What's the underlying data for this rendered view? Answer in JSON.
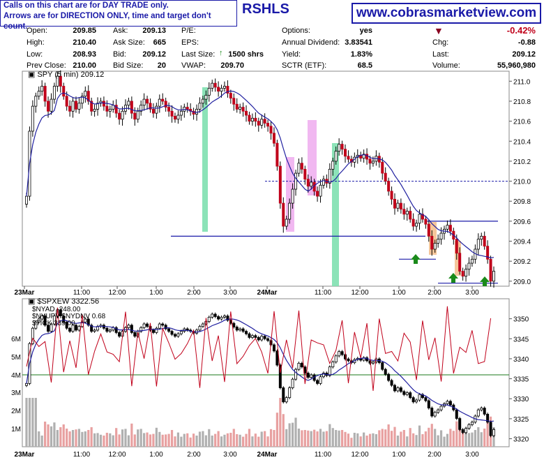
{
  "notice": {
    "line1": "Calls on this chart are for DAY TRADE only.",
    "line2": "Arrows are for DIRECTION ONLY, time and target don't count."
  },
  "symbol_title": "RSHLS",
  "brand": "www.cobrasmarketview.com",
  "quote": {
    "open_label": "Open:",
    "open": "209.85",
    "high_label": "High:",
    "high": "210.40",
    "low_label": "Low:",
    "low": "208.93",
    "prev_label": "Prev Close:",
    "prev": "210.00",
    "ask_label": "Ask:",
    "ask": "209.13",
    "asksize_label": "Ask Size:",
    "asksize": "665",
    "bid_label": "Bid:",
    "bid": "209.12",
    "bidsize_label": "Bid Size:",
    "bidsize": "20",
    "pe_label": "P/E:",
    "pe": "",
    "eps_label": "EPS:",
    "eps": "",
    "lastsize_label": "Last Size:",
    "lastsize": "1500 shrs",
    "vwap_label": "VWAP:",
    "vwap": "209.70",
    "options_label": "Options:",
    "options": "yes",
    "div_label": "Annual Dividend:",
    "div": "3.83541",
    "yield_label": "Yield:",
    "yield": "1.83%",
    "sctr_label": "SCTR (ETF):",
    "sctr": "68.5",
    "chg_pct": "-0.42%",
    "chg_label": "Chg:",
    "chg": "-0.88",
    "last_label": "Last:",
    "last": "209.12",
    "vol_label": "Volume:",
    "vol": "55,960,980"
  },
  "colors": {
    "brand_blue": "#1a1aa8",
    "candle_up": "#000000",
    "candle_down": "#c0001a",
    "ma_line": "#2020a0",
    "green_bar": "#7fe0b0",
    "pink_bar": "#f0b0f0",
    "orange_bar": "#f4c090",
    "arrow": "#1a8a1a",
    "breadth_line": "#c0001a",
    "volume_up": "#b0b0b0",
    "volume_down": "#e8a0a0"
  },
  "chart_data": [
    {
      "type": "candlestick",
      "title": "SPY (5 min) 209.12",
      "ylim": [
        208.95,
        211.1
      ],
      "y_ticks": [
        209.0,
        209.2,
        209.4,
        209.6,
        209.8,
        210.0,
        210.2,
        210.4,
        210.6,
        210.8,
        211.0
      ],
      "x_labels": [
        "23Mar",
        "11:00",
        "12:00",
        "1:00",
        "2:00",
        "3:00",
        "24Mar",
        "11:00",
        "12:00",
        "1:00",
        "2:00",
        "3:00"
      ],
      "levels": [
        209.45,
        210.0,
        209.6,
        209.22,
        208.98
      ],
      "close": [
        209.85,
        210.5,
        210.75,
        210.85,
        210.9,
        210.95,
        210.8,
        210.7,
        210.82,
        210.95,
        211.05,
        210.95,
        210.85,
        210.75,
        210.7,
        210.8,
        210.72,
        210.78,
        210.85,
        210.9,
        210.8,
        210.7,
        210.72,
        210.78,
        210.8,
        210.75,
        210.7,
        210.72,
        210.76,
        210.68,
        210.62,
        210.7,
        210.76,
        210.8,
        210.68,
        210.62,
        210.7,
        210.76,
        210.82,
        210.78,
        210.72,
        210.68,
        210.75,
        210.82,
        210.8,
        210.74,
        210.7,
        210.65,
        210.62,
        210.66,
        210.7,
        210.74,
        210.72,
        210.7,
        210.67,
        210.72,
        210.78,
        210.82,
        210.86,
        210.93,
        210.98,
        210.94,
        210.9,
        210.93,
        210.95,
        210.88,
        210.83,
        210.77,
        210.72,
        210.74,
        210.7,
        210.66,
        210.6,
        210.63,
        210.6,
        210.56,
        210.62,
        210.58,
        210.55,
        210.48,
        210.38,
        210.15,
        209.78,
        209.55,
        209.62,
        209.78,
        209.92,
        210.08,
        210.18,
        210.12,
        210.02,
        209.95,
        209.99,
        209.9,
        209.85,
        209.96,
        210.02,
        209.98,
        210.12,
        210.2,
        210.3,
        210.37,
        210.32,
        210.25,
        210.22,
        210.19,
        210.24,
        210.26,
        210.23,
        210.27,
        210.22,
        210.18,
        210.2,
        210.25,
        210.19,
        210.08,
        210.0,
        209.9,
        209.82,
        209.73,
        209.78,
        209.72,
        209.67,
        209.7,
        209.62,
        209.55,
        209.58,
        209.67,
        209.62,
        209.57,
        209.45,
        209.32,
        209.38,
        209.42,
        209.48,
        209.52,
        209.56,
        209.5,
        209.42,
        209.28,
        209.1,
        209.05,
        209.12,
        209.18,
        209.22,
        209.32,
        209.42,
        209.45,
        209.35,
        209.22,
        209.0,
        209.1
      ]
    },
    {
      "type": "line",
      "title": "$SPXEW 3322.56",
      "series": [
        {
          "name": "$SPXEW 3322.56",
          "y_range": [
            3318,
            3355
          ]
        },
        {
          "name": "$NYAD -248.00"
        },
        {
          "name": "$NYUPV:$NYDNV 0.68"
        },
        {
          "name": "$TICK 339.00"
        }
      ],
      "y_ticks_right": [
        3320,
        3325,
        3330,
        3335,
        3340,
        3345,
        3350
      ],
      "y_ticks_left": [
        "1M",
        "2M",
        "3M",
        "4M",
        "5M",
        "6M"
      ],
      "x_labels": [
        "23Mar",
        "11:00",
        "12:00",
        "1:00",
        "2:00",
        "3:00",
        "24Mar",
        "11:00",
        "12:00",
        "1:00",
        "2:00",
        "3:00"
      ]
    }
  ]
}
